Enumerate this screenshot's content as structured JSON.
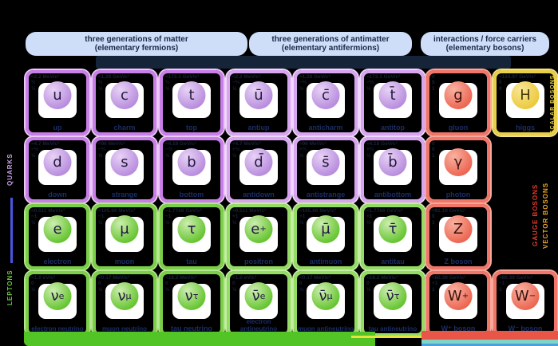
{
  "headers": [
    {
      "line1": "three generations of matter",
      "line2": "(elementary fermions)"
    },
    {
      "line1": "three generations of antimatter",
      "line2": "(elementary antifermions)"
    },
    {
      "line1": "interactions / force carriers",
      "line2": "(elementary bosons)"
    }
  ],
  "side_labels": {
    "left_top": "QUARKS",
    "left_bottom": "LEPTONS",
    "right_top": "SCALAR BOSONS",
    "right_mid_a": "GAUGE BOSONS",
    "right_mid_b": "VECTOR BOSONS"
  },
  "colors": {
    "background": "#000000",
    "header_pill": "#cfdef8",
    "header_text": "#17294a",
    "quark_border": "#c97fe8",
    "antiquark_border": "#d8a6f0",
    "lepton_border": "#7ccf48",
    "antilepton_border": "#95dc64",
    "gauge_border": "#f0766a",
    "higgs_border": "#e8cf4a",
    "name_text": "#1b2d66",
    "quark_label_color": "#c9a0e8",
    "lepton_label_color": "#6cc93e",
    "scalar_label_color": "#e8cf4a",
    "gauge_label_color": "#e83a28",
    "vector_label_color": "#f0a828"
  },
  "particles": {
    "rows": [
      [
        {
          "symbol": "u",
          "sup": "",
          "sub": "",
          "name": "up",
          "mass": "≈2.2 MeV/c²",
          "charge": "⅔",
          "spin": "½",
          "group": "quark"
        },
        {
          "symbol": "c",
          "sup": "",
          "sub": "",
          "name": "charm",
          "mass": "≈1.28 GeV/c²",
          "charge": "⅔",
          "spin": "½",
          "group": "quark"
        },
        {
          "symbol": "t",
          "sup": "",
          "sub": "",
          "name": "top",
          "mass": "≈173.1 GeV/c²",
          "charge": "⅔",
          "spin": "½",
          "group": "quark"
        },
        {
          "symbol": "ū",
          "sup": "",
          "sub": "",
          "name": "antiup",
          "mass": "≈2.2 MeV/c²",
          "charge": "−⅔",
          "spin": "½",
          "group": "antiquark"
        },
        {
          "symbol": "c̄",
          "sup": "",
          "sub": "",
          "name": "anticharm",
          "mass": "≈1.28 GeV/c²",
          "charge": "−⅔",
          "spin": "½",
          "group": "antiquark"
        },
        {
          "symbol": "t̄",
          "sup": "",
          "sub": "",
          "name": "antitop",
          "mass": "≈173.1 GeV/c²",
          "charge": "−⅔",
          "spin": "½",
          "group": "antiquark"
        },
        {
          "symbol": "g",
          "sup": "",
          "sub": "",
          "name": "gluon",
          "mass": "0",
          "charge": "0",
          "spin": "1",
          "group": "gauge"
        },
        {
          "symbol": "H",
          "sup": "",
          "sub": "",
          "name": "higgs",
          "mass": "≈124.97 GeV/c²",
          "charge": "0",
          "spin": "0",
          "group": "higgs"
        }
      ],
      [
        {
          "symbol": "d",
          "sup": "",
          "sub": "",
          "name": "down",
          "mass": "≈4.7 MeV/c²",
          "charge": "−⅓",
          "spin": "½",
          "group": "quark"
        },
        {
          "symbol": "s",
          "sup": "",
          "sub": "",
          "name": "strange",
          "mass": "≈96 MeV/c²",
          "charge": "−⅓",
          "spin": "½",
          "group": "quark"
        },
        {
          "symbol": "b",
          "sup": "",
          "sub": "",
          "name": "bottom",
          "mass": "≈4.18 GeV/c²",
          "charge": "−⅓",
          "spin": "½",
          "group": "quark"
        },
        {
          "symbol": "d̄",
          "sup": "",
          "sub": "",
          "name": "antidown",
          "mass": "≈4.7 MeV/c²",
          "charge": "+⅓",
          "spin": "½",
          "group": "antiquark"
        },
        {
          "symbol": "s̄",
          "sup": "",
          "sub": "",
          "name": "antistrange",
          "mass": "≈96 MeV/c²",
          "charge": "+⅓",
          "spin": "½",
          "group": "antiquark"
        },
        {
          "symbol": "b̄",
          "sup": "",
          "sub": "",
          "name": "antibottom",
          "mass": "≈4.18 GeV/c²",
          "charge": "+⅓",
          "spin": "½",
          "group": "antiquark"
        },
        {
          "symbol": "γ",
          "sup": "",
          "sub": "",
          "name": "photon",
          "mass": "0",
          "charge": "0",
          "spin": "1",
          "group": "gauge"
        },
        null
      ],
      [
        {
          "symbol": "e",
          "sup": "",
          "sub": "",
          "name": "electron",
          "mass": "≈0.511 MeV/c²",
          "charge": "−1",
          "spin": "½",
          "group": "lepton"
        },
        {
          "symbol": "μ",
          "sup": "",
          "sub": "",
          "name": "muon",
          "mass": "≈105.66 MeV/c²",
          "charge": "−1",
          "spin": "½",
          "group": "lepton"
        },
        {
          "symbol": "τ",
          "sup": "",
          "sub": "",
          "name": "tau",
          "mass": "≈1.7768 GeV/c²",
          "charge": "−1",
          "spin": "½",
          "group": "lepton"
        },
        {
          "symbol": "e",
          "sup": "+",
          "sub": "",
          "name": "positron",
          "mass": "≈0.511 MeV/c²",
          "charge": "+1",
          "spin": "½",
          "group": "antilepton"
        },
        {
          "symbol": "μ̄",
          "sup": "",
          "sub": "",
          "name": "antimuon",
          "mass": "≈105.66 MeV/c²",
          "charge": "+1",
          "spin": "½",
          "group": "antilepton"
        },
        {
          "symbol": "τ̄",
          "sup": "",
          "sub": "",
          "name": "antitau",
          "mass": "≈1.7768 GeV/c²",
          "charge": "+1",
          "spin": "½",
          "group": "antilepton"
        },
        {
          "symbol": "Z",
          "sup": "",
          "sub": "",
          "name": "Z boson",
          "mass": "≈91.19 GeV/c²",
          "charge": "0",
          "spin": "1",
          "group": "gauge"
        },
        null
      ],
      [
        {
          "symbol": "ν",
          "sup": "",
          "sub": "e",
          "name": "electron neutrino",
          "mass": "<1.0 eV/c²",
          "charge": "0",
          "spin": "½",
          "group": "lepton"
        },
        {
          "symbol": "ν",
          "sup": "",
          "sub": "μ",
          "name": "muon neutrino",
          "mass": "<0.17 MeV/c²",
          "charge": "0",
          "spin": "½",
          "group": "lepton"
        },
        {
          "symbol": "ν",
          "sup": "",
          "sub": "τ",
          "name": "tau neutrino",
          "mass": "<18.2 MeV/c²",
          "charge": "0",
          "spin": "½",
          "group": "lepton"
        },
        {
          "symbol": "ν̄",
          "sup": "",
          "sub": "e",
          "name": "electron antineutrino",
          "mass": "<1.0 eV/c²",
          "charge": "0",
          "spin": "½",
          "group": "antilepton"
        },
        {
          "symbol": "ν̄",
          "sup": "",
          "sub": "μ",
          "name": "muon antineutrino",
          "mass": "<0.17 MeV/c²",
          "charge": "0",
          "spin": "½",
          "group": "antilepton"
        },
        {
          "symbol": "ν̄",
          "sup": "",
          "sub": "τ",
          "name": "tau antineutrino",
          "mass": "<18.2 MeV/c²",
          "charge": "0",
          "spin": "½",
          "group": "antilepton"
        },
        {
          "symbol": "W",
          "sup": "+",
          "sub": "",
          "name": "W⁺ boson",
          "mass": "≈80.39 GeV/c²",
          "charge": "+1",
          "spin": "1",
          "group": "gauge"
        },
        {
          "symbol": "W",
          "sup": "−",
          "sub": "",
          "name": "W⁻ boson",
          "mass": "≈80.39 GeV/c²",
          "charge": "−1",
          "spin": "1",
          "group": "gauge"
        }
      ]
    ]
  }
}
